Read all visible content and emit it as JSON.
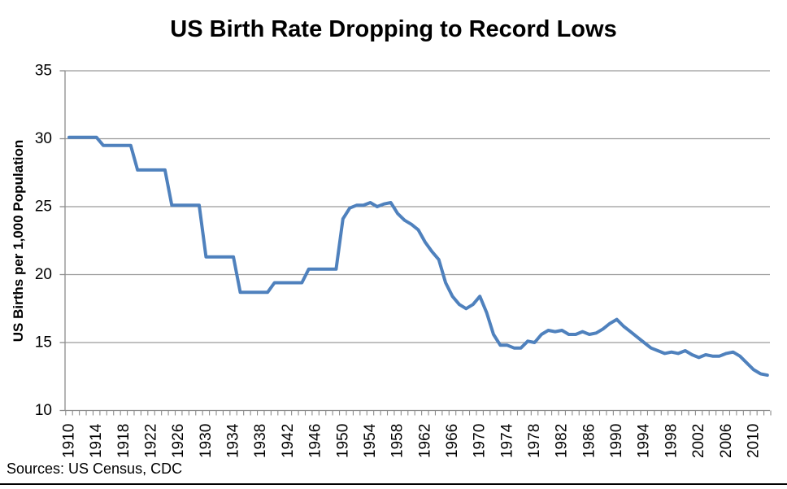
{
  "header": {
    "title": "US Birth Rate Dropping to Record Lows"
  },
  "footer": {
    "source_note": "Sources: US Census, CDC"
  },
  "chart_data": {
    "type": "line",
    "title": "US Birth Rate Dropping to Record Lows",
    "xlabel": "",
    "ylabel": "US Births per 1,000 Population",
    "ylim": [
      10,
      35
    ],
    "yticks": [
      35,
      30,
      25,
      20,
      15,
      10
    ],
    "xtick_labels": [
      1910,
      1914,
      1918,
      1922,
      1926,
      1930,
      1934,
      1938,
      1942,
      1946,
      1950,
      1954,
      1958,
      1962,
      1966,
      1970,
      1974,
      1978,
      1982,
      1986,
      1990,
      1994,
      1998,
      2002,
      2006,
      2010
    ],
    "grid": "horizontal",
    "legend": "none",
    "colors": {
      "line": "#4F81BD",
      "gridline": "#9A9A9A",
      "axis": "#8C8C8C",
      "text": "#000000",
      "background": "#FFFFFF"
    },
    "series": [
      {
        "name": "US births per 1,000 population",
        "x": [
          1910,
          1911,
          1912,
          1913,
          1914,
          1915,
          1916,
          1917,
          1918,
          1919,
          1920,
          1921,
          1922,
          1923,
          1924,
          1925,
          1926,
          1927,
          1928,
          1929,
          1930,
          1931,
          1932,
          1933,
          1934,
          1935,
          1936,
          1937,
          1938,
          1939,
          1940,
          1941,
          1942,
          1943,
          1944,
          1945,
          1946,
          1947,
          1948,
          1949,
          1950,
          1951,
          1952,
          1953,
          1954,
          1955,
          1956,
          1957,
          1958,
          1959,
          1960,
          1961,
          1962,
          1963,
          1964,
          1965,
          1966,
          1967,
          1968,
          1969,
          1970,
          1971,
          1972,
          1973,
          1974,
          1975,
          1976,
          1977,
          1978,
          1979,
          1980,
          1981,
          1982,
          1983,
          1984,
          1985,
          1986,
          1987,
          1988,
          1989,
          1990,
          1991,
          1992,
          1993,
          1994,
          1995,
          1996,
          1997,
          1998,
          1999,
          2000,
          2001,
          2002,
          2003,
          2004,
          2005,
          2006,
          2007,
          2008,
          2009,
          2010,
          2011,
          2012
        ],
        "values": [
          30.1,
          30.1,
          30.1,
          30.1,
          30.1,
          29.5,
          29.5,
          29.5,
          29.5,
          29.5,
          27.7,
          27.7,
          27.7,
          27.7,
          27.7,
          25.1,
          25.1,
          25.1,
          25.1,
          25.1,
          21.3,
          21.3,
          21.3,
          21.3,
          21.3,
          18.7,
          18.7,
          18.7,
          18.7,
          18.7,
          19.4,
          19.4,
          19.4,
          19.4,
          19.4,
          20.4,
          20.4,
          20.4,
          20.4,
          20.4,
          24.1,
          24.9,
          25.1,
          25.1,
          25.3,
          25.0,
          25.2,
          25.3,
          24.5,
          24.0,
          23.7,
          23.3,
          22.4,
          21.7,
          21.1,
          19.4,
          18.4,
          17.8,
          17.5,
          17.8,
          18.4,
          17.2,
          15.6,
          14.8,
          14.8,
          14.6,
          14.6,
          15.1,
          15.0,
          15.6,
          15.9,
          15.8,
          15.9,
          15.6,
          15.6,
          15.8,
          15.6,
          15.7,
          16.0,
          16.4,
          16.7,
          16.2,
          15.8,
          15.4,
          15.0,
          14.6,
          14.4,
          14.2,
          14.3,
          14.2,
          14.4,
          14.1,
          13.9,
          14.1,
          14.0,
          14.0,
          14.2,
          14.3,
          14.0,
          13.5,
          13.0,
          12.7,
          12.6
        ]
      }
    ]
  }
}
